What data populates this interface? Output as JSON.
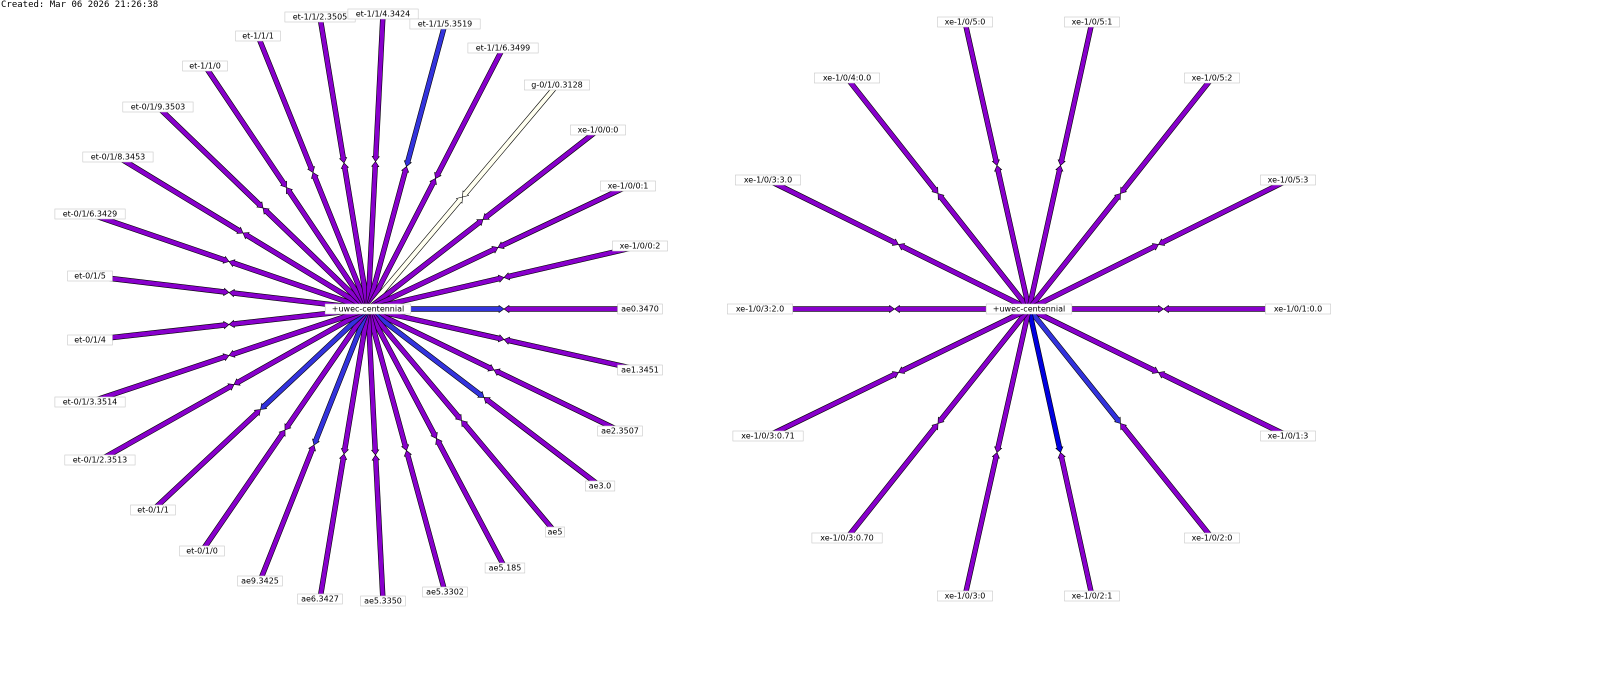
{
  "created": "Created: Mar 06 2026 21:26:38",
  "colors": {
    "default_link": "#8800cc",
    "low_util_link": "#3333dd",
    "mid_low_link": "#0000e0",
    "idle_link": "#fffff0",
    "outline": "#000000",
    "label_border": "#c8c8c8"
  },
  "diagrams": [
    {
      "hub_label": "+uwec-centennial",
      "links": [
        {
          "label": "ae0.3470",
          "color_in": "low_util_link",
          "color_out": "default_link"
        },
        {
          "label": "ae1.3451",
          "color_in": "default_link",
          "color_out": "default_link"
        },
        {
          "label": "ae2.3507",
          "color_in": "default_link",
          "color_out": "default_link"
        },
        {
          "label": "ae3.0",
          "color_in": "low_util_link",
          "color_out": "default_link"
        },
        {
          "label": "ae5",
          "color_in": "default_link",
          "color_out": "default_link"
        },
        {
          "label": "ae5.185",
          "color_in": "default_link",
          "color_out": "default_link"
        },
        {
          "label": "ae5.3302",
          "color_in": "default_link",
          "color_out": "default_link"
        },
        {
          "label": "ae5.3350",
          "color_in": "default_link",
          "color_out": "default_link"
        },
        {
          "label": "ae6.3427",
          "color_in": "default_link",
          "color_out": "default_link"
        },
        {
          "label": "ae9.3425",
          "color_in": "low_util_link",
          "color_out": "default_link"
        },
        {
          "label": "et-0/1/0",
          "color_in": "default_link",
          "color_out": "default_link"
        },
        {
          "label": "et-0/1/1",
          "color_in": "low_util_link",
          "color_out": "default_link"
        },
        {
          "label": "et-0/1/2.3513",
          "color_in": "default_link",
          "color_out": "default_link"
        },
        {
          "label": "et-0/1/3.3514",
          "color_in": "default_link",
          "color_out": "default_link"
        },
        {
          "label": "et-0/1/4",
          "color_in": "default_link",
          "color_out": "default_link"
        },
        {
          "label": "et-0/1/5",
          "color_in": "default_link",
          "color_out": "default_link"
        },
        {
          "label": "et-0/1/6.3429",
          "color_in": "default_link",
          "color_out": "default_link"
        },
        {
          "label": "et-0/1/8.3453",
          "color_in": "default_link",
          "color_out": "default_link"
        },
        {
          "label": "et-0/1/9.3503",
          "color_in": "default_link",
          "color_out": "default_link"
        },
        {
          "label": "et-1/1/0",
          "color_in": "default_link",
          "color_out": "default_link"
        },
        {
          "label": "et-1/1/1",
          "color_in": "default_link",
          "color_out": "default_link"
        },
        {
          "label": "et-1/1/2.3505",
          "color_in": "default_link",
          "color_out": "default_link"
        },
        {
          "label": "et-1/1/4.3424",
          "color_in": "default_link",
          "color_out": "default_link"
        },
        {
          "label": "et-1/1/5.3519",
          "color_in": "default_link",
          "color_out": "low_util_link"
        },
        {
          "label": "et-1/1/6.3499",
          "color_in": "default_link",
          "color_out": "default_link"
        },
        {
          "label": "g-0/1/0.3128",
          "color_in": "idle_link",
          "color_out": "idle_link"
        },
        {
          "label": "xe-1/0/0:0",
          "color_in": "default_link",
          "color_out": "default_link"
        },
        {
          "label": "xe-1/0/0:1",
          "color_in": "default_link",
          "color_out": "default_link"
        },
        {
          "label": "xe-1/0/0:2",
          "color_in": "default_link",
          "color_out": "default_link"
        }
      ]
    },
    {
      "hub_label": "+uwec-centennial",
      "links": [
        {
          "label": "xe-1/0/1:0.0",
          "color_in": "default_link",
          "color_out": "default_link"
        },
        {
          "label": "xe-1/0/1:3",
          "color_in": "default_link",
          "color_out": "default_link"
        },
        {
          "label": "xe-1/0/2:0",
          "color_in": "low_util_link",
          "color_out": "default_link"
        },
        {
          "label": "xe-1/0/2:1",
          "color_in": "mid_low_link",
          "color_out": "default_link"
        },
        {
          "label": "xe-1/0/3:0",
          "color_in": "default_link",
          "color_out": "default_link"
        },
        {
          "label": "xe-1/0/3:0.70",
          "color_in": "default_link",
          "color_out": "default_link"
        },
        {
          "label": "xe-1/0/3:0.71",
          "color_in": "default_link",
          "color_out": "default_link"
        },
        {
          "label": "xe-1/0/3:2.0",
          "color_in": "default_link",
          "color_out": "default_link"
        },
        {
          "label": "xe-1/0/3:3.0",
          "color_in": "default_link",
          "color_out": "default_link"
        },
        {
          "label": "xe-1/0/4:0.0",
          "color_in": "default_link",
          "color_out": "default_link"
        },
        {
          "label": "xe-1/0/5:0",
          "color_in": "default_link",
          "color_out": "default_link"
        },
        {
          "label": "xe-1/0/5:1",
          "color_in": "default_link",
          "color_out": "default_link"
        },
        {
          "label": "xe-1/0/5:2",
          "color_in": "default_link",
          "color_out": "default_link"
        },
        {
          "label": "xe-1/0/5:3",
          "color_in": "default_link",
          "color_out": "default_link"
        }
      ]
    }
  ]
}
